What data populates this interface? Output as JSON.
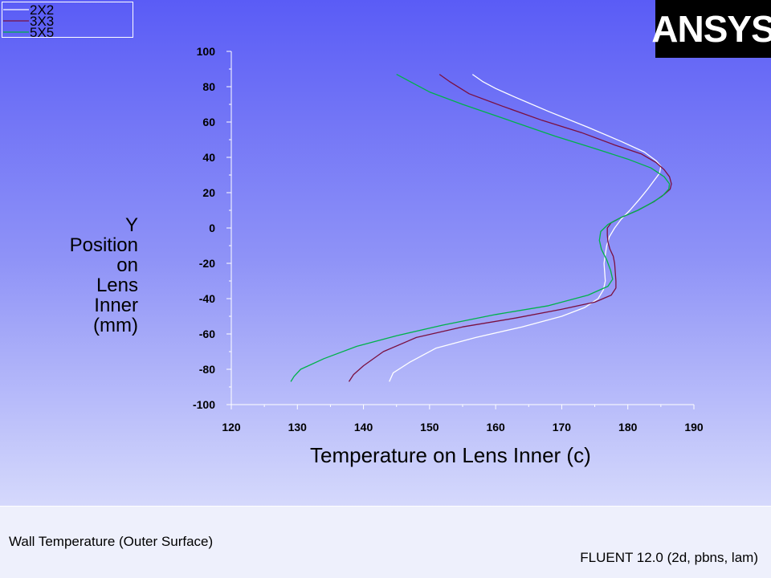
{
  "window": {
    "brand": "ANSYS"
  },
  "footer": {
    "plot_title": "Wall Temperature (Outer Surface)",
    "solver": "FLUENT 12.0 (2d, pbns, lam)"
  },
  "chart_data": {
    "type": "line",
    "title": "",
    "xlabel": "Temperature on Lens Inner (c)",
    "ylabel_lines": [
      "Y",
      "Position",
      "on",
      "Lens",
      "Inner",
      "(mm)"
    ],
    "xlim": [
      120,
      190
    ],
    "ylim": [
      -100,
      100
    ],
    "xticks": [
      120,
      130,
      140,
      150,
      160,
      170,
      180,
      190
    ],
    "yticks": [
      100,
      80,
      60,
      40,
      20,
      0,
      -20,
      -40,
      -60,
      -80,
      -100
    ],
    "legend_position": "top-left",
    "grid": false,
    "series": [
      {
        "name": "2X2",
        "color": "#ffffff",
        "points": [
          [
            156.5,
            87
          ],
          [
            158,
            83
          ],
          [
            160,
            79
          ],
          [
            163,
            74
          ],
          [
            168,
            66
          ],
          [
            174,
            57
          ],
          [
            179,
            49
          ],
          [
            182.5,
            43
          ],
          [
            184.3,
            38
          ],
          [
            185,
            35
          ],
          [
            184.8,
            31
          ],
          [
            184,
            27
          ],
          [
            183,
            22
          ],
          [
            181.7,
            16
          ],
          [
            180.3,
            10
          ],
          [
            179,
            5
          ],
          [
            178,
            0
          ],
          [
            177.2,
            -5
          ],
          [
            176.8,
            -10
          ],
          [
            176.6,
            -15
          ],
          [
            176.4,
            -20
          ],
          [
            176.5,
            -25
          ],
          [
            176.6,
            -30
          ],
          [
            176.3,
            -35
          ],
          [
            175.5,
            -40
          ],
          [
            173.5,
            -45
          ],
          [
            170,
            -50
          ],
          [
            164,
            -56
          ],
          [
            157,
            -62
          ],
          [
            151,
            -68
          ],
          [
            147,
            -76
          ],
          [
            144.5,
            -82
          ],
          [
            143.9,
            -87
          ]
        ]
      },
      {
        "name": "3X3",
        "color": "#7a1040",
        "points": [
          [
            151.5,
            87
          ],
          [
            153,
            83
          ],
          [
            156,
            76
          ],
          [
            161,
            69
          ],
          [
            167,
            61
          ],
          [
            173,
            54
          ],
          [
            178,
            47
          ],
          [
            182,
            42
          ],
          [
            184.3,
            37
          ],
          [
            185.5,
            33
          ],
          [
            186.3,
            29
          ],
          [
            186.6,
            25
          ],
          [
            186.4,
            22
          ],
          [
            185.5,
            19
          ],
          [
            184,
            15
          ],
          [
            181.5,
            10
          ],
          [
            179,
            6
          ],
          [
            177.5,
            3
          ],
          [
            176.9,
            0
          ],
          [
            176.9,
            -4
          ],
          [
            177,
            -8
          ],
          [
            177.3,
            -12
          ],
          [
            177.8,
            -16
          ],
          [
            178,
            -20
          ],
          [
            178.1,
            -25
          ],
          [
            178.2,
            -30
          ],
          [
            178.2,
            -34
          ],
          [
            177.5,
            -38
          ],
          [
            175,
            -42
          ],
          [
            170,
            -46
          ],
          [
            163,
            -51
          ],
          [
            155,
            -56
          ],
          [
            148,
            -62
          ],
          [
            143,
            -70
          ],
          [
            140,
            -78
          ],
          [
            138.5,
            -83
          ],
          [
            137.8,
            -87
          ]
        ]
      },
      {
        "name": "5X5",
        "color": "#00b24a",
        "points": [
          [
            145,
            87
          ],
          [
            147,
            83
          ],
          [
            150,
            77
          ],
          [
            155,
            70
          ],
          [
            162,
            61
          ],
          [
            169,
            52
          ],
          [
            175,
            45
          ],
          [
            180,
            39
          ],
          [
            183.5,
            34
          ],
          [
            185.5,
            29
          ],
          [
            186.3,
            25
          ],
          [
            186.2,
            22
          ],
          [
            185.2,
            18
          ],
          [
            183.5,
            14
          ],
          [
            181.5,
            10
          ],
          [
            179,
            6
          ],
          [
            177,
            2
          ],
          [
            175.9,
            -2
          ],
          [
            175.7,
            -7
          ],
          [
            176,
            -12
          ],
          [
            176.8,
            -18
          ],
          [
            177.4,
            -24
          ],
          [
            177.7,
            -29
          ],
          [
            177,
            -33
          ],
          [
            174,
            -38
          ],
          [
            168,
            -44
          ],
          [
            160,
            -49
          ],
          [
            152,
            -55
          ],
          [
            145,
            -61
          ],
          [
            139,
            -67
          ],
          [
            134,
            -74
          ],
          [
            130.5,
            -80
          ],
          [
            129.5,
            -84
          ],
          [
            129,
            -87
          ]
        ]
      }
    ]
  }
}
